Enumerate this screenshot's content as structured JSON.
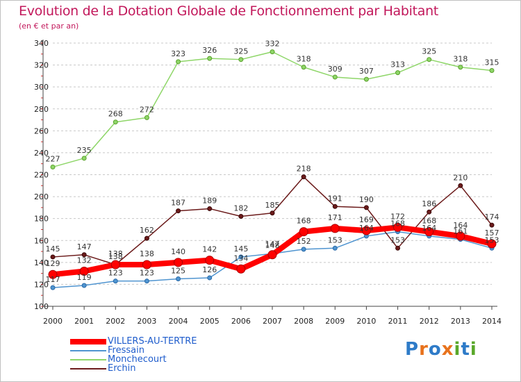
{
  "title": "Evolution de la Dotation Globale de Fonctionnement par Habitant",
  "subtitle": "(en € et par an)",
  "brand": "Proxiti",
  "brand_colors": [
    "#2e7bc8",
    "#e8721c",
    "#2e7bc8",
    "#e8721c",
    "#5aa82a",
    "#2e7bc8",
    "#5aa82a"
  ],
  "chart_data": {
    "type": "line",
    "title": "Evolution de la Dotation Globale de Fonctionnement par Habitant",
    "ylabel": "(en € et par an)",
    "xlabel": "",
    "x": [
      "2000",
      "2001",
      "2002",
      "2003",
      "2004",
      "2005",
      "2006",
      "2007",
      "2008",
      "2009",
      "2010",
      "2011",
      "2012",
      "2013",
      "2014"
    ],
    "ylim": [
      100,
      340
    ],
    "yticks": [
      100,
      120,
      140,
      160,
      180,
      200,
      220,
      240,
      260,
      280,
      300,
      320,
      340
    ],
    "grid": "horizontal dashed",
    "legend": "bottom-left",
    "series": [
      {
        "name": "Fressain",
        "color": "#4f94d0",
        "values": [
          117,
          119,
          123,
          123,
          125,
          126,
          145,
          148,
          152,
          153,
          164,
          168,
          164,
          161,
          153
        ]
      },
      {
        "name": "Monchecourt",
        "color": "#8ed668",
        "values": [
          227,
          235,
          268,
          272,
          323,
          326,
          325,
          332,
          318,
          309,
          307,
          313,
          325,
          318,
          315
        ]
      },
      {
        "name": "Erchin",
        "color": "#6b1a1a",
        "values": [
          145,
          147,
          138,
          162,
          187,
          189,
          182,
          185,
          218,
          191,
          190,
          153,
          186,
          210,
          174
        ]
      },
      {
        "name": "VILLERS-AU-TERTRE",
        "color": "#ff0000",
        "values": [
          129,
          132,
          138,
          138,
          140,
          142,
          134,
          147,
          168,
          171,
          169,
          172,
          168,
          164,
          157
        ]
      }
    ]
  }
}
